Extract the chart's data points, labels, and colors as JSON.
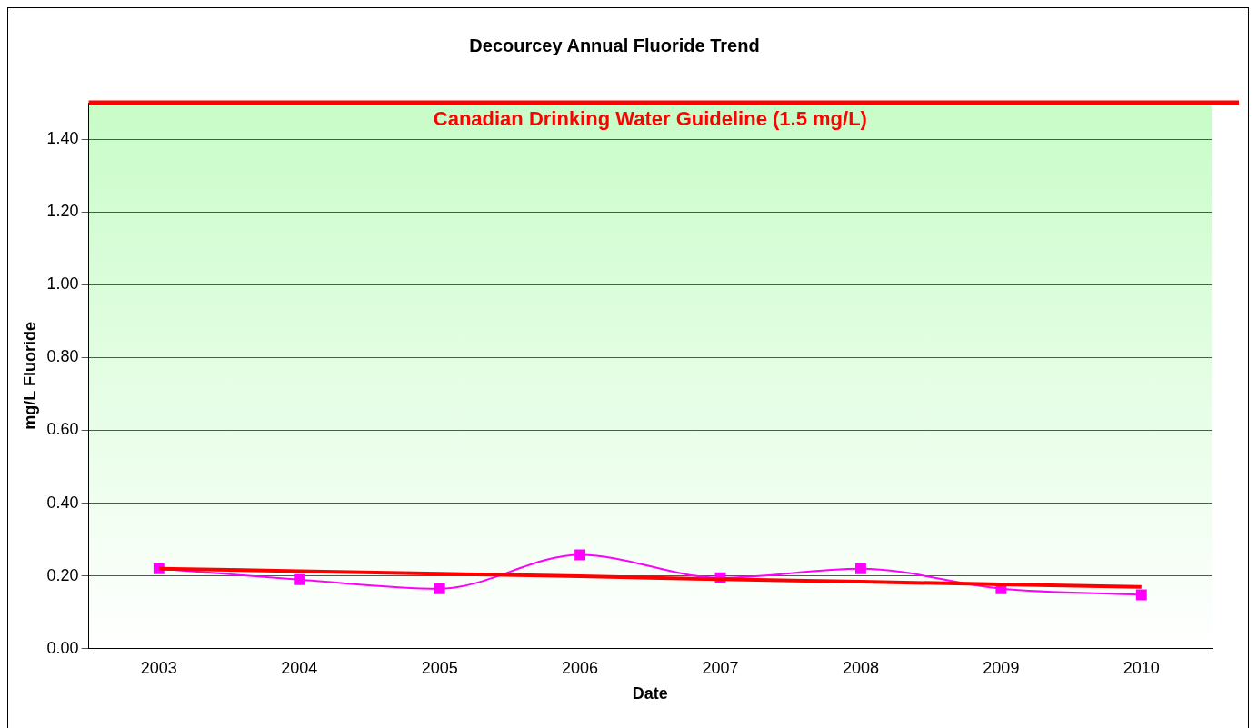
{
  "chart_data": {
    "type": "line",
    "title": "Decourcey Annual Fluoride Trend",
    "xlabel": "Date",
    "ylabel": "mg/L Fluoride",
    "categories": [
      "2003",
      "2004",
      "2005",
      "2006",
      "2007",
      "2008",
      "2009",
      "2010"
    ],
    "series": [
      {
        "color": "#ff00ff",
        "marker": "square",
        "values": [
          0.22,
          0.19,
          0.165,
          0.258,
          0.195,
          0.22,
          0.165,
          0.148
        ]
      },
      {
        "color": "#ff0000",
        "marker": "none",
        "values": [
          0.22,
          0.213,
          0.206,
          0.199,
          0.191,
          0.184,
          0.177,
          0.17
        ]
      }
    ],
    "ylim": [
      0,
      1.5
    ],
    "yticks": [
      {
        "value": 0,
        "label": "0.00"
      },
      {
        "value": 0.2,
        "label": "0.20"
      },
      {
        "value": 0.4,
        "label": "0.40"
      },
      {
        "value": 0.6,
        "label": "0.60"
      },
      {
        "value": 0.8,
        "label": "0.80"
      },
      {
        "value": 1.0,
        "label": "1.00"
      },
      {
        "value": 1.2,
        "label": "1.20"
      },
      {
        "value": 1.4,
        "label": "1.40"
      }
    ],
    "grid": "y",
    "legend": false,
    "ref_lines": [
      {
        "axis": "y",
        "value": 1.5,
        "label": "Canadian Drinking Water Guideline (1.5 mg/L)",
        "color": "#ff0000"
      }
    ]
  }
}
